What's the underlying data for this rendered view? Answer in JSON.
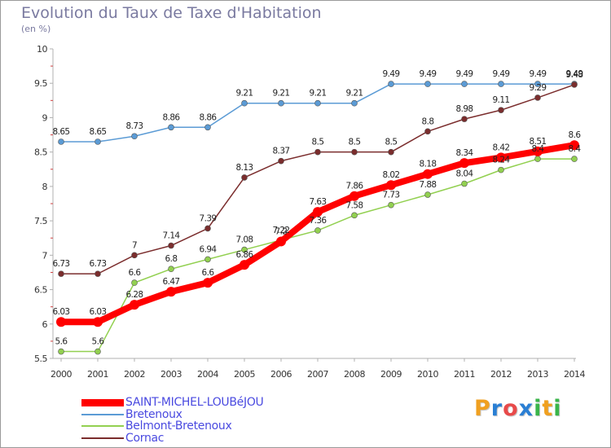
{
  "chart_data": {
    "type": "line",
    "title": "Evolution du Taux de Taxe d'Habitation",
    "subtitle": "(en %)",
    "x": [
      "2000",
      "2001",
      "2002",
      "2003",
      "2004",
      "2005",
      "2006",
      "2007",
      "2008",
      "2009",
      "2010",
      "2011",
      "2012",
      "2013",
      "2014"
    ],
    "yticks": [
      "5.5",
      "6",
      "6.5",
      "7",
      "7.5",
      "8",
      "8.5",
      "9",
      "9.5",
      "10"
    ],
    "ylim": [
      5.5,
      10
    ],
    "grid": false,
    "legend": "bottom-left",
    "series": [
      {
        "name": "SAINT-MICHEL-LOUBéJOU",
        "color": "#ff0000",
        "values": [
          6.03,
          6.03,
          6.28,
          6.47,
          6.6,
          6.86,
          7.2,
          7.63,
          7.86,
          8.02,
          8.18,
          8.34,
          8.42,
          8.51,
          8.6
        ]
      },
      {
        "name": "Bretenoux",
        "color": "#5b9bd5",
        "values": [
          8.65,
          8.65,
          8.73,
          8.86,
          8.86,
          9.21,
          9.21,
          9.21,
          9.21,
          9.49,
          9.49,
          9.49,
          9.49,
          9.49,
          9.49
        ]
      },
      {
        "name": "Belmont-Bretenoux",
        "color": "#92d050",
        "values": [
          5.6,
          5.6,
          6.6,
          6.8,
          6.94,
          7.08,
          7.22,
          7.36,
          7.58,
          7.73,
          7.88,
          8.04,
          8.24,
          8.4,
          8.4
        ]
      },
      {
        "name": "Cornac",
        "color": "#7b2d2d",
        "values": [
          6.73,
          6.73,
          7.0,
          7.14,
          7.39,
          8.13,
          8.37,
          8.5,
          8.5,
          8.5,
          8.8,
          8.98,
          9.11,
          9.29,
          9.48
        ]
      }
    ],
    "value_labels": {
      "SAINT-MICHEL-LOUBéJOU": [
        "6.03",
        "6.03",
        "6.28",
        "6.47",
        "6.6",
        "6.86",
        "7.2",
        "7.63",
        "7.86",
        "8.02",
        "8.18",
        "8.34",
        "8.42",
        "8.51",
        "8.6"
      ],
      "Bretenoux": [
        "8.65",
        "8.65",
        "8.73",
        "8.86",
        "8.86",
        "9.21",
        "9.21",
        "9.21",
        "9.21",
        "9.49",
        "9.49",
        "9.49",
        "9.49",
        "9.49",
        "9.49"
      ],
      "Belmont-Bretenoux": [
        "5.6",
        "5.6",
        "6.6",
        "6.8",
        "6.94",
        "7.08",
        "7.22",
        "7.36",
        "7.58",
        "7.73",
        "7.88",
        "8.04",
        "8.24",
        "8.4",
        "8.4"
      ],
      "Cornac": [
        "6.73",
        "6.73",
        "7",
        "7.14",
        "7.39",
        "8.13",
        "8.37",
        "8.5",
        "8.5",
        "8.5",
        "8.8",
        "8.98",
        "9.11",
        "9.29",
        "9.48"
      ]
    }
  },
  "logo": {
    "letters": [
      "P",
      "r",
      "o",
      "x",
      "i",
      "t",
      "i"
    ],
    "colors": [
      "#f0a020",
      "#2a7fd4",
      "#e84a4a",
      "#2a7fd4",
      "#3ab54a",
      "#f0a020",
      "#3ab54a"
    ]
  }
}
